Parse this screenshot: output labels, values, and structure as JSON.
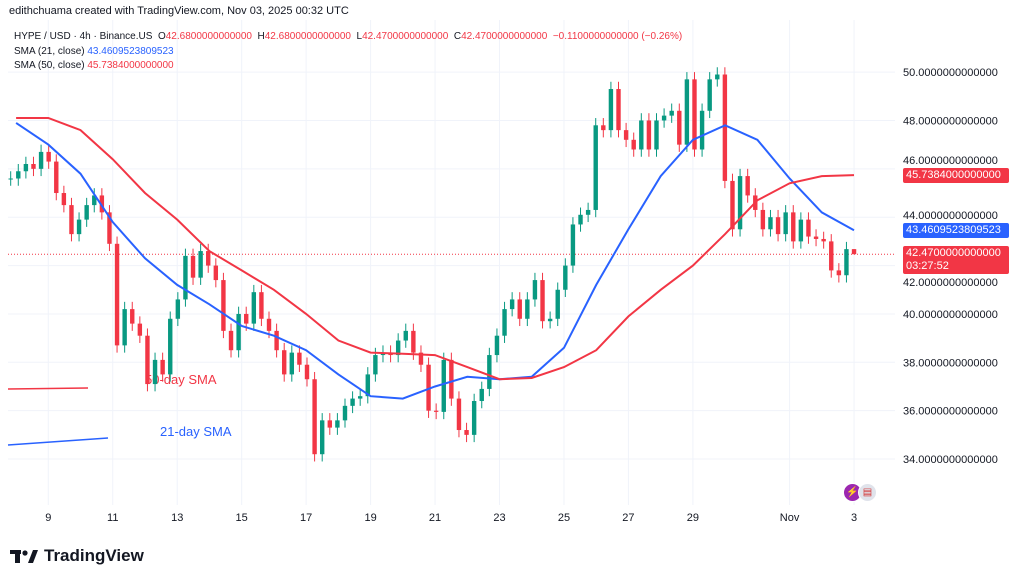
{
  "attribution": "edithchuama created with TradingView.com, Nov 03, 2025 00:32 UTC",
  "legend": {
    "symbol": "HYPE / USD · 4h · Binance.US",
    "o_label": "O",
    "o": "42.6800000000000",
    "h_label": "H",
    "h": "42.6800000000000",
    "l_label": "L",
    "l": "42.4700000000000",
    "c_label": "C",
    "c": "42.4700000000000",
    "change": "−0.1100000000000 (−0.26%)",
    "sma21_label": "SMA (21, close)",
    "sma21_value": "43.4609523809523",
    "sma50_label": "SMA (50, close)",
    "sma50_value": "45.7384000000000"
  },
  "price_tags": {
    "sma50": "45.7384000000000",
    "sma21": "43.4609523809523",
    "last": "42.4700000000000",
    "countdown": "03:27:52"
  },
  "annotations": {
    "sma50_text": "50-day SMA",
    "sma21_text": "21-day SMA"
  },
  "branding": {
    "logo_text": "TradingView"
  },
  "colors": {
    "up": "#089981",
    "down": "#f23645",
    "sma21": "#2962ff",
    "sma50": "#f23645",
    "grid": "#f0f3fa"
  },
  "chart_data": {
    "type": "candlestick",
    "timeframe": "4h",
    "xlim": [
      "2025-10-07T18:00",
      "2025-11-04T06:30"
    ],
    "ylim": [
      32.1,
      50.5
    ],
    "grid": true,
    "x_ticks": [
      {
        "date": "2025-10-09",
        "label": "9"
      },
      {
        "date": "2025-10-11",
        "label": "11"
      },
      {
        "date": "2025-10-13",
        "label": "13"
      },
      {
        "date": "2025-10-15",
        "label": "15"
      },
      {
        "date": "2025-10-17",
        "label": "17"
      },
      {
        "date": "2025-10-19",
        "label": "19"
      },
      {
        "date": "2025-10-21",
        "label": "21"
      },
      {
        "date": "2025-10-23",
        "label": "23"
      },
      {
        "date": "2025-10-25",
        "label": "25"
      },
      {
        "date": "2025-10-27",
        "label": "27"
      },
      {
        "date": "2025-10-29",
        "label": "29"
      },
      {
        "date": "2025-11-01",
        "label": "Nov"
      },
      {
        "date": "2025-11-03",
        "label": "3"
      }
    ],
    "y_ticks": [
      {
        "value": 34,
        "label": "34.0000000000000"
      },
      {
        "value": 36,
        "label": "36.0000000000000"
      },
      {
        "value": 38,
        "label": "38.0000000000000"
      },
      {
        "value": 40,
        "label": "40.0000000000000"
      },
      {
        "value": 42,
        "label": "42.0000000000000"
      },
      {
        "value": 44,
        "label": "44.0000000000000"
      },
      {
        "value": 46,
        "label": "46.0000000000000"
      },
      {
        "value": 48,
        "label": "48.0000000000000"
      },
      {
        "value": 50,
        "label": "50.0000000000000"
      }
    ],
    "candles": {
      "first": "2025-10-07T20:00",
      "last": "2025-11-03T00:00",
      "closes": [
        45.6,
        45.9,
        46.2,
        46.0,
        46.7,
        46.3,
        45.0,
        44.5,
        43.3,
        43.9,
        44.5,
        44.9,
        44.2,
        42.9,
        38.7,
        40.2,
        39.6,
        39.1,
        37.1,
        38.1,
        37.5,
        39.8,
        40.6,
        42.4,
        41.5,
        42.6,
        42.0,
        41.4,
        39.3,
        38.5,
        40.0,
        39.6,
        40.9,
        39.8,
        39.3,
        38.5,
        37.5,
        38.4,
        37.9,
        37.3,
        34.2,
        35.6,
        35.3,
        35.6,
        36.2,
        36.5,
        36.6,
        37.5,
        38.3,
        38.4,
        38.3,
        38.9,
        39.3,
        38.4,
        37.9,
        36.0,
        35.95,
        38.1,
        36.5,
        35.2,
        35.0,
        36.4,
        36.9,
        38.3,
        39.1,
        40.2,
        40.6,
        39.8,
        40.6,
        41.4,
        39.7,
        39.8,
        41.0,
        42.0,
        43.7,
        44.1,
        44.3,
        47.8,
        47.6,
        49.3,
        47.6,
        47.2,
        46.8,
        48.0,
        46.8,
        48.0,
        48.2,
        48.4,
        47.0,
        49.7,
        46.8,
        48.4,
        49.7,
        49.9,
        45.5,
        43.5,
        45.7,
        44.9,
        44.3,
        43.5,
        44.0,
        43.3,
        44.2,
        43.0,
        43.9,
        43.2,
        43.1,
        43.0,
        41.8,
        41.6,
        42.68,
        42.47
      ],
      "last_ohlc": {
        "o": 42.68,
        "h": 42.68,
        "l": 42.47,
        "c": 42.47
      }
    },
    "series": [
      {
        "name": "SMA (21, close)",
        "color": "#2962ff",
        "dates": [
          "2025-10-08",
          "2025-10-09",
          "2025-10-10",
          "2025-10-11",
          "2025-10-12",
          "2025-10-13",
          "2025-10-14",
          "2025-10-15",
          "2025-10-16",
          "2025-10-17",
          "2025-10-18",
          "2025-10-19",
          "2025-10-20",
          "2025-10-21",
          "2025-10-22",
          "2025-10-23",
          "2025-10-24",
          "2025-10-25",
          "2025-10-26",
          "2025-10-27",
          "2025-10-28",
          "2025-10-29",
          "2025-10-30",
          "2025-10-31",
          "2025-11-01",
          "2025-11-02",
          "2025-11-03"
        ],
        "values": [
          47.9,
          47.0,
          45.8,
          43.8,
          42.3,
          41.2,
          40.4,
          39.5,
          39.1,
          38.5,
          37.5,
          36.6,
          36.5,
          37.0,
          37.4,
          37.3,
          37.4,
          38.6,
          41.2,
          43.5,
          45.7,
          47.2,
          47.8,
          47.2,
          45.6,
          44.2,
          43.46
        ]
      },
      {
        "name": "SMA (50, close)",
        "color": "#f23645",
        "dates": [
          "2025-10-08",
          "2025-10-09",
          "2025-10-10",
          "2025-10-11",
          "2025-10-12",
          "2025-10-13",
          "2025-10-14",
          "2025-10-15",
          "2025-10-16",
          "2025-10-17",
          "2025-10-18",
          "2025-10-19",
          "2025-10-20",
          "2025-10-21",
          "2025-10-22",
          "2025-10-23",
          "2025-10-24",
          "2025-10-25",
          "2025-10-26",
          "2025-10-27",
          "2025-10-28",
          "2025-10-29",
          "2025-10-30",
          "2025-10-31",
          "2025-11-01",
          "2025-11-02",
          "2025-11-03"
        ],
        "values": [
          48.1,
          48.1,
          47.6,
          46.4,
          45.0,
          43.9,
          42.6,
          41.8,
          41.0,
          40.0,
          38.9,
          38.4,
          38.35,
          38.3,
          37.8,
          37.3,
          37.35,
          37.8,
          38.5,
          39.9,
          41.0,
          42.0,
          43.3,
          44.7,
          45.4,
          45.7,
          45.74
        ]
      }
    ],
    "last_price": 42.47
  }
}
